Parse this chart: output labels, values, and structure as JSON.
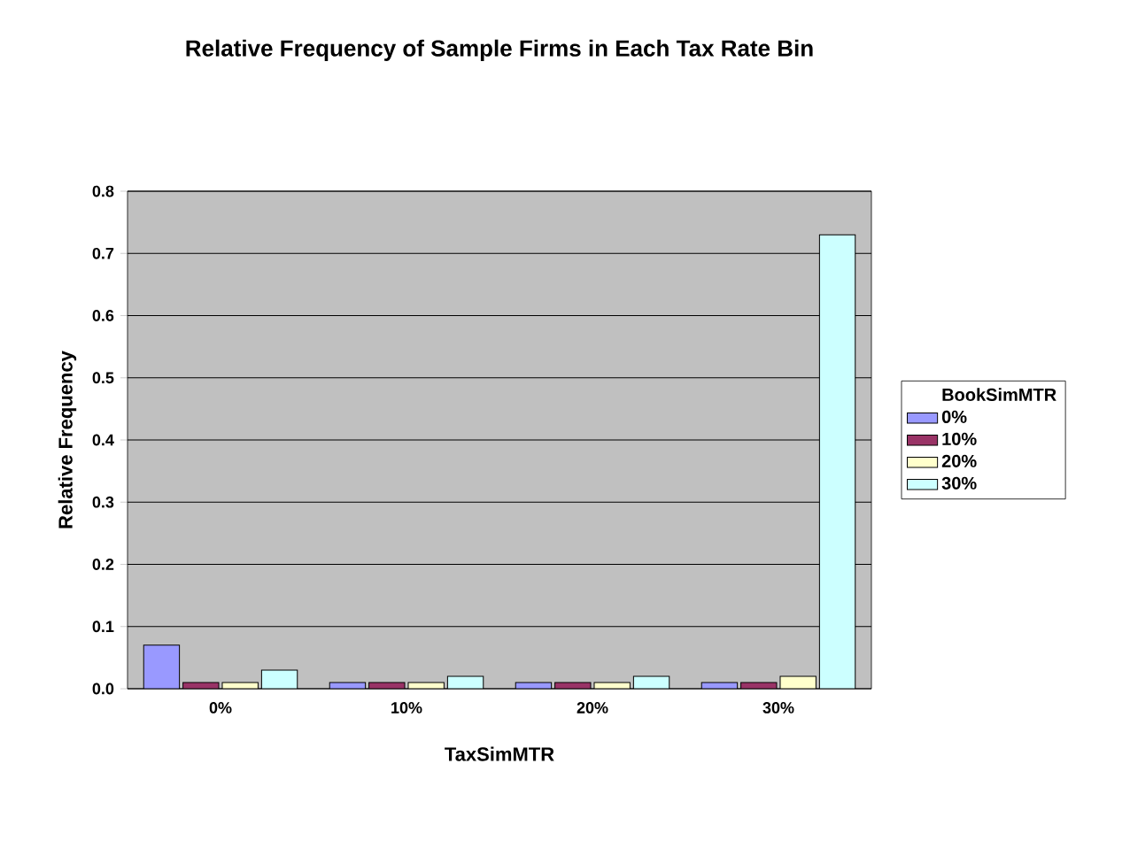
{
  "chart_data": {
    "type": "bar",
    "title": "Relative Frequency of Sample Firms in Each Tax Rate Bin",
    "xlabel": "TaxSimMTR",
    "ylabel": "Relative Frequency",
    "legend_title": "BookSimMTR",
    "categories": [
      "0%",
      "10%",
      "20%",
      "30%"
    ],
    "series": [
      {
        "name": "0%",
        "color": "#9999ff",
        "values": [
          0.07,
          0.01,
          0.01,
          0.01
        ]
      },
      {
        "name": "10%",
        "color": "#993366",
        "values": [
          0.01,
          0.01,
          0.01,
          0.01
        ]
      },
      {
        "name": "20%",
        "color": "#ffffcc",
        "values": [
          0.01,
          0.01,
          0.01,
          0.02
        ]
      },
      {
        "name": "30%",
        "color": "#ccffff",
        "values": [
          0.03,
          0.02,
          0.02,
          0.73
        ]
      }
    ],
    "ylim": [
      0,
      0.8
    ],
    "yticks": [
      {
        "value": 0,
        "label": "0.0"
      },
      0.1,
      0.2,
      0.3,
      0.4,
      0.5,
      0.6,
      0.7,
      0.8
    ],
    "grid": "y",
    "legend": "right"
  }
}
